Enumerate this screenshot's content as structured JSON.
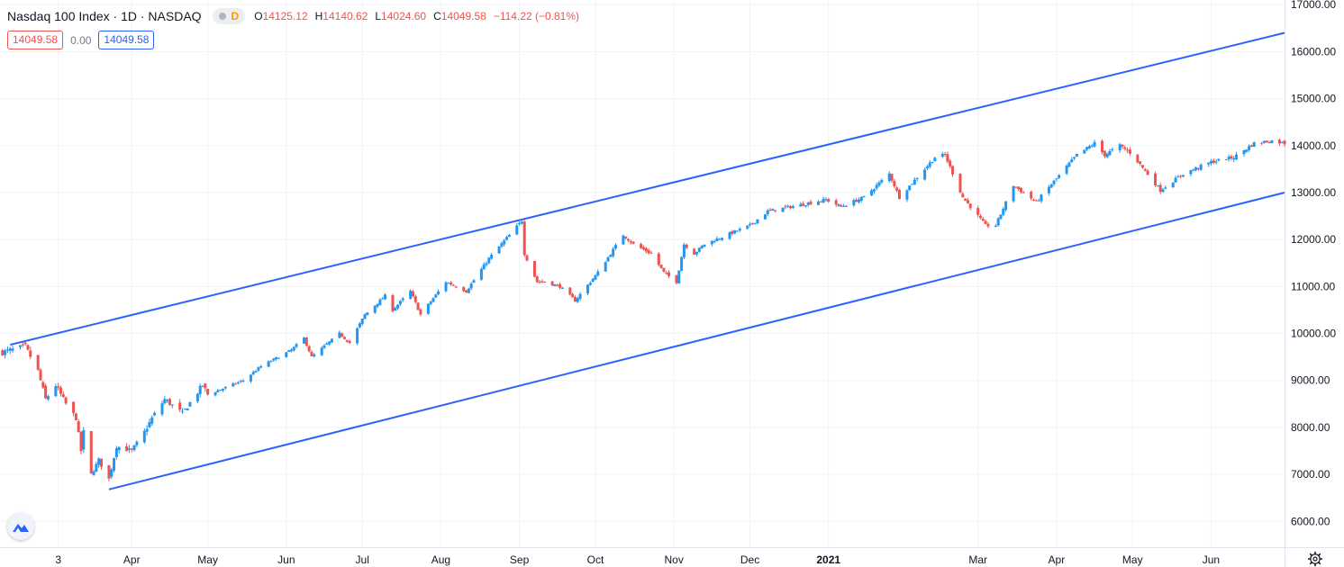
{
  "legend": {
    "title": "Nasdaq 100 Index · 1D · NASDAQ",
    "interval_badge": "D",
    "o_label": "O",
    "o": "14125.12",
    "h_label": "H",
    "h": "14140.62",
    "l_label": "L",
    "l": "14024.60",
    "c_label": "C",
    "c": "14049.58",
    "change": "−114.22 (−0.81%)"
  },
  "row2": {
    "price_box": "14049.58",
    "zero": "0.00",
    "price_box2": "14049.58"
  },
  "colors": {
    "up": "#2196f3",
    "down": "#ef5350",
    "channel": "#2962ff",
    "grid": "#f0f3fa",
    "axis_text": "#131722"
  },
  "chart_data": {
    "type": "candlestick",
    "symbol": "Nasdaq 100 Index",
    "interval": "1D",
    "exchange": "NASDAQ",
    "ylim": [
      5450,
      17100
    ],
    "y_ticks": [
      "17000.00",
      "16000.00",
      "15000.00",
      "14000.00",
      "13000.00",
      "12000.00",
      "11000.00",
      "10000.00",
      "9000.00",
      "8000.00",
      "7000.00",
      "6000.00"
    ],
    "x_ticks": [
      "3",
      "Apr",
      "May",
      "Jun",
      "Jul",
      "Aug",
      "Sep",
      "Oct",
      "Nov",
      "Dec",
      "2021",
      "Mar",
      "Apr",
      "May",
      "Jun"
    ],
    "x_tick_dates": [
      "2020-03-03",
      "2020-04-01",
      "2020-05-01",
      "2020-06-01",
      "2020-07-01",
      "2020-08-01",
      "2020-09-01",
      "2020-10-01",
      "2020-11-01",
      "2020-12-01",
      "2021-01-01",
      "2021-03-01",
      "2021-04-01",
      "2021-05-01",
      "2021-06-01"
    ],
    "x_range": [
      "2020-02-09",
      "2021-06-30"
    ],
    "channel_upper": [
      [
        "2020-02-13",
        9760
      ],
      [
        "2021-06-30",
        16400
      ]
    ],
    "channel_lower": [
      [
        "2020-03-23",
        6680
      ],
      [
        "2021-06-30",
        13000
      ]
    ],
    "close_path": [
      [
        "2020-02-10",
        9600
      ],
      [
        "2020-02-19",
        9720
      ],
      [
        "2020-02-24",
        9200
      ],
      [
        "2020-02-27",
        8600
      ],
      [
        "2020-03-02",
        8900
      ],
      [
        "2020-03-06",
        8500
      ],
      [
        "2020-03-10",
        8200
      ],
      [
        "2020-03-12",
        7500
      ],
      [
        "2020-03-13",
        7900
      ],
      [
        "2020-03-16",
        7000
      ],
      [
        "2020-03-19",
        7300
      ],
      [
        "2020-03-23",
        6900
      ],
      [
        "2020-03-26",
        7600
      ],
      [
        "2020-04-01",
        7500
      ],
      [
        "2020-04-06",
        7900
      ],
      [
        "2020-04-09",
        8200
      ],
      [
        "2020-04-14",
        8600
      ],
      [
        "2020-04-21",
        8300
      ],
      [
        "2020-04-29",
        8900
      ],
      [
        "2020-05-01",
        8700
      ],
      [
        "2020-05-15",
        9000
      ],
      [
        "2020-05-22",
        9300
      ],
      [
        "2020-06-03",
        9650
      ],
      [
        "2020-06-08",
        9900
      ],
      [
        "2020-06-11",
        9500
      ],
      [
        "2020-06-22",
        10000
      ],
      [
        "2020-06-26",
        9800
      ],
      [
        "2020-07-02",
        10400
      ],
      [
        "2020-07-10",
        10800
      ],
      [
        "2020-07-13",
        10500
      ],
      [
        "2020-07-20",
        10900
      ],
      [
        "2020-07-24",
        10400
      ],
      [
        "2020-08-03",
        11100
      ],
      [
        "2020-08-11",
        10900
      ],
      [
        "2020-08-20",
        11600
      ],
      [
        "2020-09-02",
        12400
      ],
      [
        "2020-09-03",
        11700
      ],
      [
        "2020-09-08",
        11100
      ],
      [
        "2020-09-11",
        11100
      ],
      [
        "2020-09-17",
        11000
      ],
      [
        "2020-09-23",
        10700
      ],
      [
        "2020-10-02",
        11300
      ],
      [
        "2020-10-12",
        12100
      ],
      [
        "2020-10-16",
        11900
      ],
      [
        "2020-10-23",
        11700
      ],
      [
        "2020-10-28",
        11300
      ],
      [
        "2020-11-02",
        11100
      ],
      [
        "2020-11-05",
        11900
      ],
      [
        "2020-11-09",
        11700
      ],
      [
        "2020-11-13",
        11900
      ],
      [
        "2020-12-01",
        12300
      ],
      [
        "2020-12-08",
        12600
      ],
      [
        "2020-12-31",
        12850
      ],
      [
        "2021-01-06",
        12700
      ],
      [
        "2021-01-15",
        12900
      ],
      [
        "2021-01-25",
        13400
      ],
      [
        "2021-01-29",
        12900
      ],
      [
        "2021-02-12",
        13750
      ],
      [
        "2021-02-16",
        13800
      ],
      [
        "2021-02-23",
        12900
      ],
      [
        "2021-03-04",
        12300
      ],
      [
        "2021-03-08",
        12300
      ],
      [
        "2021-03-15",
        13150
      ],
      [
        "2021-03-24",
        12800
      ],
      [
        "2021-04-09",
        13800
      ],
      [
        "2021-04-16",
        14050
      ],
      [
        "2021-04-20",
        13800
      ],
      [
        "2021-04-26",
        14000
      ],
      [
        "2021-04-30",
        13850
      ],
      [
        "2021-05-04",
        13600
      ],
      [
        "2021-05-12",
        13050
      ],
      [
        "2021-05-21",
        13400
      ],
      [
        "2021-06-01",
        13650
      ],
      [
        "2021-06-10",
        13750
      ],
      [
        "2021-06-18",
        14050
      ],
      [
        "2021-06-25",
        14100
      ],
      [
        "2021-06-30",
        14050
      ]
    ],
    "last": {
      "date": "2021-06-30",
      "open": 14125.12,
      "high": 14140.62,
      "low": 14024.6,
      "close": 14049.58,
      "change": -114.22,
      "change_pct": -0.81
    }
  }
}
